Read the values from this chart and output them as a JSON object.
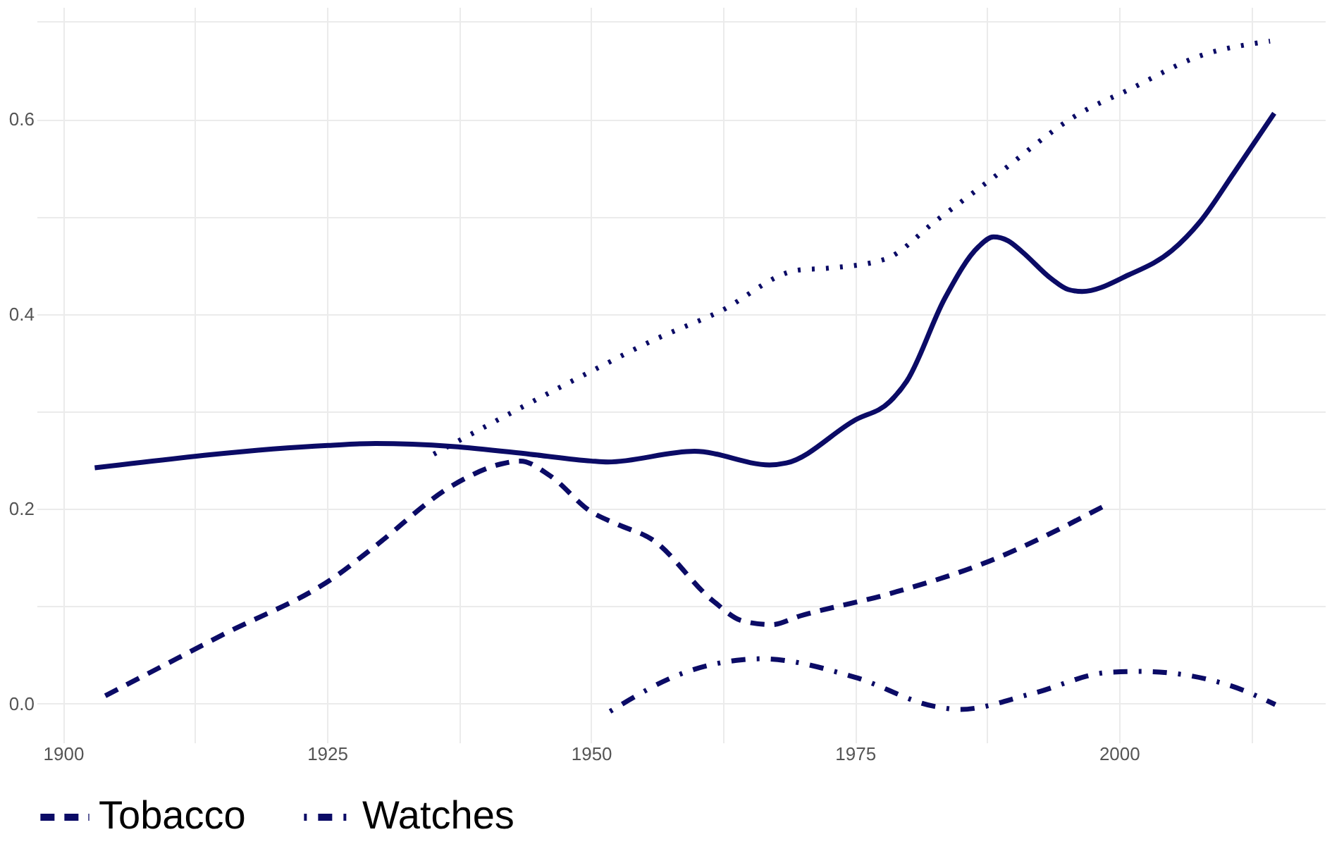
{
  "chart_data": {
    "type": "line",
    "xlim": [
      1897.5,
      2019.5
    ],
    "ylim": [
      -0.04,
      0.715
    ],
    "xticks": [
      1900,
      {
        "value": 1912.5,
        "label": null
      },
      1925,
      {
        "value": 1937.5,
        "label": null
      },
      1950,
      {
        "value": 1962.5,
        "label": null
      },
      1975,
      {
        "value": 1987.5,
        "label": null
      },
      2000,
      {
        "value": 2012.5,
        "label": null
      }
    ],
    "yticks": [
      {
        "value": 0,
        "label": "0.0"
      },
      {
        "value": 0.1,
        "label": null
      },
      0.2,
      {
        "value": 0.3,
        "label": null
      },
      0.4,
      {
        "value": 0.5,
        "label": null
      },
      0.6,
      {
        "value": 0.7,
        "label": null
      }
    ],
    "grid": true,
    "legend": "bottom",
    "series": [
      {
        "color": "#0b0b66",
        "line_style": "solid",
        "x": [
          1903.0,
          1925.1,
          1929.6,
          1936.9,
          1944.2,
          1950.0,
          1951.6,
          1959.8,
          1966.9,
          1968.5,
          1975.0,
          1978.3,
          1979.9,
          1983.5,
          1986.7,
          1988.1,
          1989.5,
          1990.8,
          1993.6,
          1995.2,
          1996.5,
          2000.9,
          2005.0,
          2007.7,
          2010.9,
          2014.7
        ],
        "values": [
          0.242,
          0.265,
          0.267,
          0.264,
          0.256,
          0.249,
          0.248,
          0.259,
          0.245,
          0.247,
          0.291,
          0.31,
          0.331,
          0.416,
          0.469,
          0.479,
          0.475,
          0.464,
          0.436,
          0.425,
          0.423,
          0.44,
          0.465,
          0.495,
          0.545,
          0.606
        ]
      },
      {
        "color": "#0b0b66",
        "line_style": "dotted",
        "x": [
          1935.1,
          1950.0,
          1956.1,
          1962.1,
          1969.6,
          1972.5,
          1977.8,
          1982.6,
          1988.1,
          1996.3,
          2000.9,
          2007.7,
          2014.3
        ],
        "values": [
          0.256,
          0.341,
          0.374,
          0.402,
          0.445,
          0.447,
          0.456,
          0.495,
          0.54,
          0.606,
          0.63,
          0.665,
          0.68
        ]
      },
      {
        "name": "Tobacco",
        "color": "#0b0b66",
        "line_style": "dashed",
        "x": [
          1904.0,
          1915.0,
          1926.0,
          1929.6,
          1936.9,
          1941.5,
          1943.3,
          1946.1,
          1950.0,
          1952.5,
          1955.7,
          1961.6,
          1964.3,
          1967.1,
          1969.8,
          1978.0,
          1987.2,
          1998.8
        ],
        "values": [
          0.008,
          0.07,
          0.132,
          0.162,
          0.224,
          0.246,
          0.249,
          0.234,
          0.197,
          0.184,
          0.169,
          0.105,
          0.085,
          0.081,
          0.09,
          0.112,
          0.144,
          0.204
        ]
      },
      {
        "name": "Watches",
        "color": "#0b0b66",
        "line_style": "dashdot",
        "x": [
          1951.8,
          1958.9,
          1964.3,
          1966.1,
          1975.0,
          1982.6,
          1984.9,
          1991.7,
          1999.0,
          2002.0,
          2010.1,
          2014.8
        ],
        "values": [
          -0.008,
          0.032,
          0.045,
          0.046,
          0.027,
          -0.003,
          -0.006,
          0.01,
          0.032,
          0.033,
          0.02,
          -0.001
        ]
      }
    ]
  }
}
